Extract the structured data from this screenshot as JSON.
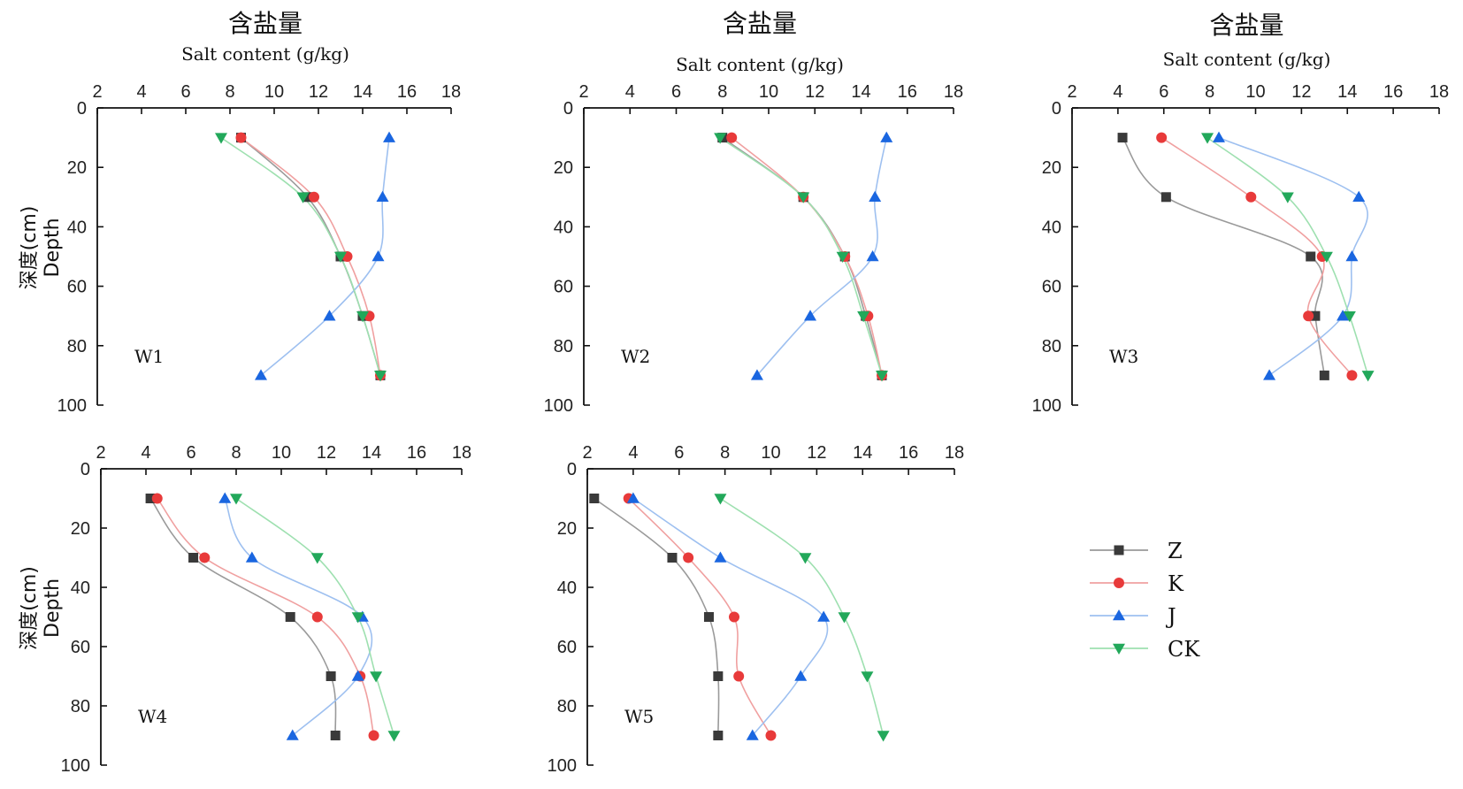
{
  "chart_data": [
    {
      "type": "line",
      "panel_label": "W1",
      "title": "含盐量",
      "xlabel": "Salt content (g/kg)",
      "ylabel_cn": "深度(cm)",
      "ylabel_en": "Depth",
      "xlim": [
        2,
        18
      ],
      "ylim": [
        0,
        100
      ],
      "xticks": [
        2,
        4,
        6,
        8,
        10,
        12,
        14,
        16,
        18
      ],
      "yticks": [
        0,
        20,
        40,
        60,
        80,
        100
      ],
      "y": [
        10,
        30,
        50,
        70,
        90
      ],
      "series": [
        {
          "name": "Z",
          "values": [
            8.5,
            11.5,
            13.0,
            14.0,
            14.8
          ]
        },
        {
          "name": "K",
          "values": [
            8.5,
            11.8,
            13.3,
            14.3,
            14.8
          ]
        },
        {
          "name": "J",
          "values": [
            15.2,
            14.9,
            14.7,
            12.5,
            9.4
          ]
        },
        {
          "name": "CK",
          "values": [
            7.6,
            11.3,
            13.0,
            14.0,
            14.8
          ]
        }
      ]
    },
    {
      "type": "line",
      "panel_label": "W2",
      "title": "含盐量",
      "xlabel": "Salt content (g/kg)",
      "ylabel_cn": "",
      "ylabel_en": "",
      "xlim": [
        2,
        18
      ],
      "ylim": [
        0,
        100
      ],
      "xticks": [
        2,
        4,
        6,
        8,
        10,
        12,
        14,
        16,
        18
      ],
      "yticks": [
        0,
        20,
        40,
        60,
        80,
        100
      ],
      "y": [
        10,
        30,
        50,
        70,
        90
      ],
      "series": [
        {
          "name": "Z",
          "values": [
            8.0,
            11.5,
            13.3,
            14.2,
            14.9
          ]
        },
        {
          "name": "K",
          "values": [
            8.4,
            11.5,
            13.3,
            14.3,
            14.9
          ]
        },
        {
          "name": "J",
          "values": [
            15.1,
            14.6,
            14.5,
            11.8,
            9.5
          ]
        },
        {
          "name": "CK",
          "values": [
            7.9,
            11.5,
            13.2,
            14.1,
            14.9
          ]
        }
      ]
    },
    {
      "type": "line",
      "panel_label": "W3",
      "title": "含盐量",
      "xlabel": "Salt content (g/kg)",
      "ylabel_cn": "",
      "ylabel_en": "",
      "xlim": [
        2,
        18
      ],
      "ylim": [
        0,
        100
      ],
      "xticks": [
        2,
        4,
        6,
        8,
        10,
        12,
        14,
        16,
        18
      ],
      "yticks": [
        0,
        20,
        40,
        60,
        80,
        100
      ],
      "y": [
        10,
        30,
        50,
        70,
        90
      ],
      "series": [
        {
          "name": "Z",
          "values": [
            4.2,
            6.1,
            12.4,
            12.6,
            13.0
          ]
        },
        {
          "name": "K",
          "values": [
            5.9,
            9.8,
            12.9,
            12.3,
            14.2
          ]
        },
        {
          "name": "J",
          "values": [
            8.4,
            14.5,
            14.2,
            13.8,
            10.6
          ]
        },
        {
          "name": "CK",
          "values": [
            7.9,
            11.4,
            13.1,
            14.1,
            14.9
          ]
        }
      ]
    },
    {
      "type": "line",
      "panel_label": "W4",
      "title": "",
      "xlabel": "",
      "ylabel_cn": "深度(cm)",
      "ylabel_en": "Depth",
      "xlim": [
        2,
        18
      ],
      "ylim": [
        0,
        100
      ],
      "xticks": [
        2,
        4,
        6,
        8,
        10,
        12,
        14,
        16,
        18
      ],
      "yticks": [
        0,
        20,
        40,
        60,
        80,
        100
      ],
      "y": [
        10,
        30,
        50,
        70,
        90
      ],
      "series": [
        {
          "name": "Z",
          "values": [
            4.2,
            6.1,
            10.4,
            12.2,
            12.4
          ]
        },
        {
          "name": "K",
          "values": [
            4.5,
            6.6,
            11.6,
            13.5,
            14.1
          ]
        },
        {
          "name": "J",
          "values": [
            7.5,
            8.7,
            13.6,
            13.4,
            10.5
          ]
        },
        {
          "name": "CK",
          "values": [
            8.0,
            11.6,
            13.4,
            14.2,
            15.0
          ]
        }
      ]
    },
    {
      "type": "line",
      "panel_label": "W5",
      "title": "",
      "xlabel": "",
      "ylabel_cn": "",
      "ylabel_en": "",
      "xlim": [
        2,
        18
      ],
      "ylim": [
        0,
        100
      ],
      "xticks": [
        2,
        4,
        6,
        8,
        10,
        12,
        14,
        16,
        18
      ],
      "yticks": [
        0,
        20,
        40,
        60,
        80,
        100
      ],
      "y": [
        10,
        30,
        50,
        70,
        90
      ],
      "series": [
        {
          "name": "Z",
          "values": [
            2.3,
            5.7,
            7.3,
            7.7,
            7.7
          ]
        },
        {
          "name": "K",
          "values": [
            3.8,
            6.4,
            8.4,
            8.6,
            10.0
          ]
        },
        {
          "name": "J",
          "values": [
            4.0,
            7.8,
            12.3,
            11.3,
            9.2
          ]
        },
        {
          "name": "CK",
          "values": [
            7.8,
            11.5,
            13.2,
            14.2,
            14.9
          ]
        }
      ]
    }
  ],
  "legend": {
    "position": "lower-right",
    "items": [
      "Z",
      "K",
      "J",
      "CK"
    ]
  },
  "series_colors": {
    "Z": {
      "marker": "#3a3a3a",
      "line": "#9a9a9a",
      "shape": "square"
    },
    "K": {
      "marker": "#e83a3a",
      "line": "#f0a0a0",
      "shape": "circle"
    },
    "J": {
      "marker": "#1a66e0",
      "line": "#9ec0f0",
      "shape": "triangle-up"
    },
    "CK": {
      "marker": "#22a85a",
      "line": "#9ee0b0",
      "shape": "triangle-down"
    }
  }
}
